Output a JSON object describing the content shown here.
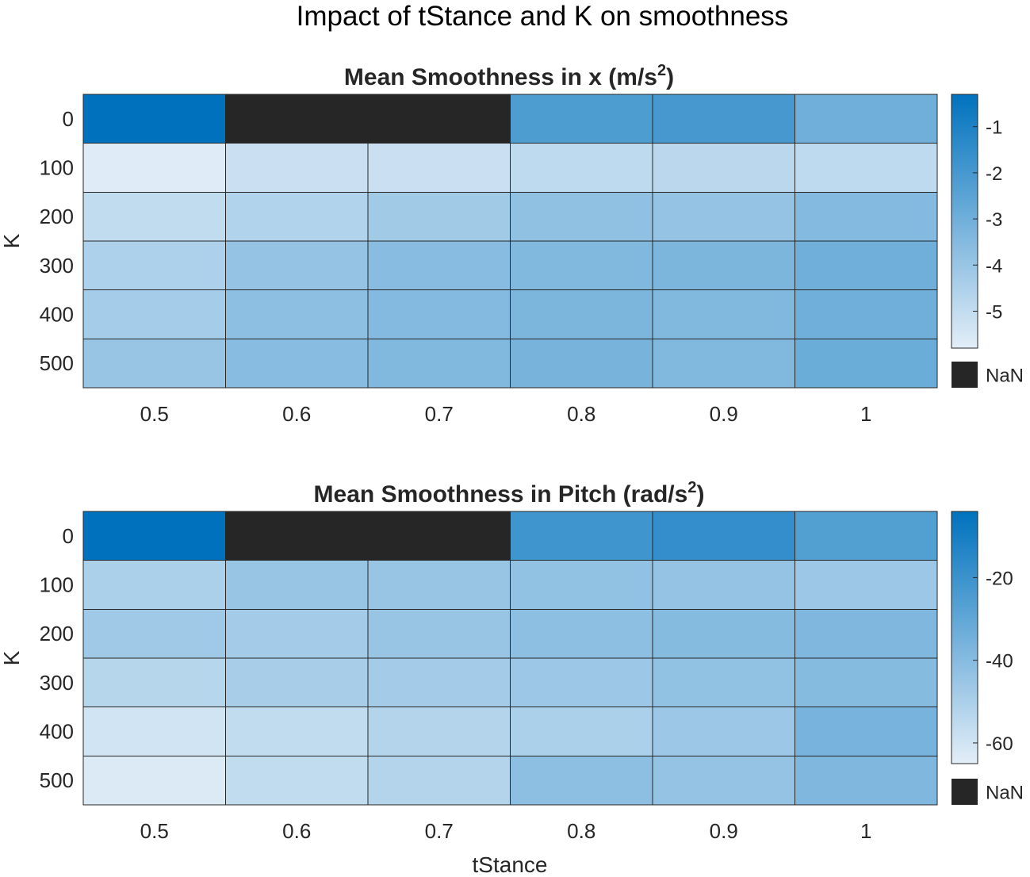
{
  "figure_title": "Impact of tStance and K on smoothness",
  "colors": {
    "low": "#e3eef8",
    "high": "#0072bd",
    "nan": "#262626",
    "grid": "#262626",
    "frame": "#262626"
  },
  "chart_data": [
    {
      "type": "heatmap",
      "title": "Mean Smoothness in x (m/s",
      "title_superscript": "2",
      "title_suffix": ")",
      "xlabel": "",
      "ylabel": "K",
      "x_categories": [
        "0.5",
        "0.6",
        "0.7",
        "0.8",
        "0.9",
        "1"
      ],
      "y_categories": [
        "0",
        "100",
        "200",
        "300",
        "400",
        "500"
      ],
      "values": [
        [
          -0.3,
          null,
          null,
          -2.2,
          -2.0,
          -3.0
        ],
        [
          -5.7,
          -5.2,
          -5.2,
          -4.9,
          -4.8,
          -4.9
        ],
        [
          -5.0,
          -4.6,
          -4.2,
          -3.8,
          -3.9,
          -3.5
        ],
        [
          -4.5,
          -3.9,
          -3.6,
          -3.4,
          -3.3,
          -3.0
        ],
        [
          -4.3,
          -3.7,
          -3.5,
          -3.3,
          -3.4,
          -3.0
        ],
        [
          -4.0,
          -3.6,
          -3.4,
          -3.2,
          -3.4,
          -2.9
        ]
      ],
      "clim": [
        -5.8,
        -0.3
      ],
      "colorbar_ticks": [
        -1,
        -2,
        -3,
        -4,
        -5
      ],
      "colorbar_tick_labels": [
        "-1",
        "-2",
        "-3",
        "-4",
        "-5"
      ],
      "nan_label": "NaN"
    },
    {
      "type": "heatmap",
      "title": "Mean Smoothness in Pitch (rad/s",
      "title_superscript": "2",
      "title_suffix": ")",
      "xlabel": "tStance",
      "ylabel": "K",
      "x_categories": [
        "0.5",
        "0.6",
        "0.7",
        "0.8",
        "0.9",
        "1"
      ],
      "y_categories": [
        "0",
        "100",
        "200",
        "300",
        "400",
        "500"
      ],
      "values": [
        [
          -4,
          null,
          null,
          -21,
          -18,
          -26
        ],
        [
          -50,
          -45,
          -45,
          -43,
          -44,
          -46
        ],
        [
          -47,
          -48,
          -45,
          -42,
          -40,
          -38
        ],
        [
          -53,
          -49,
          -48,
          -46,
          -43,
          -40
        ],
        [
          -60,
          -56,
          -52,
          -50,
          -46,
          -36
        ],
        [
          -63,
          -56,
          -52,
          -42,
          -44,
          -38
        ]
      ],
      "clim": [
        -65,
        -4
      ],
      "colorbar_ticks": [
        -20,
        -40,
        -60
      ],
      "colorbar_tick_labels": [
        "-20",
        "-40",
        "-60"
      ],
      "nan_label": "NaN"
    }
  ]
}
